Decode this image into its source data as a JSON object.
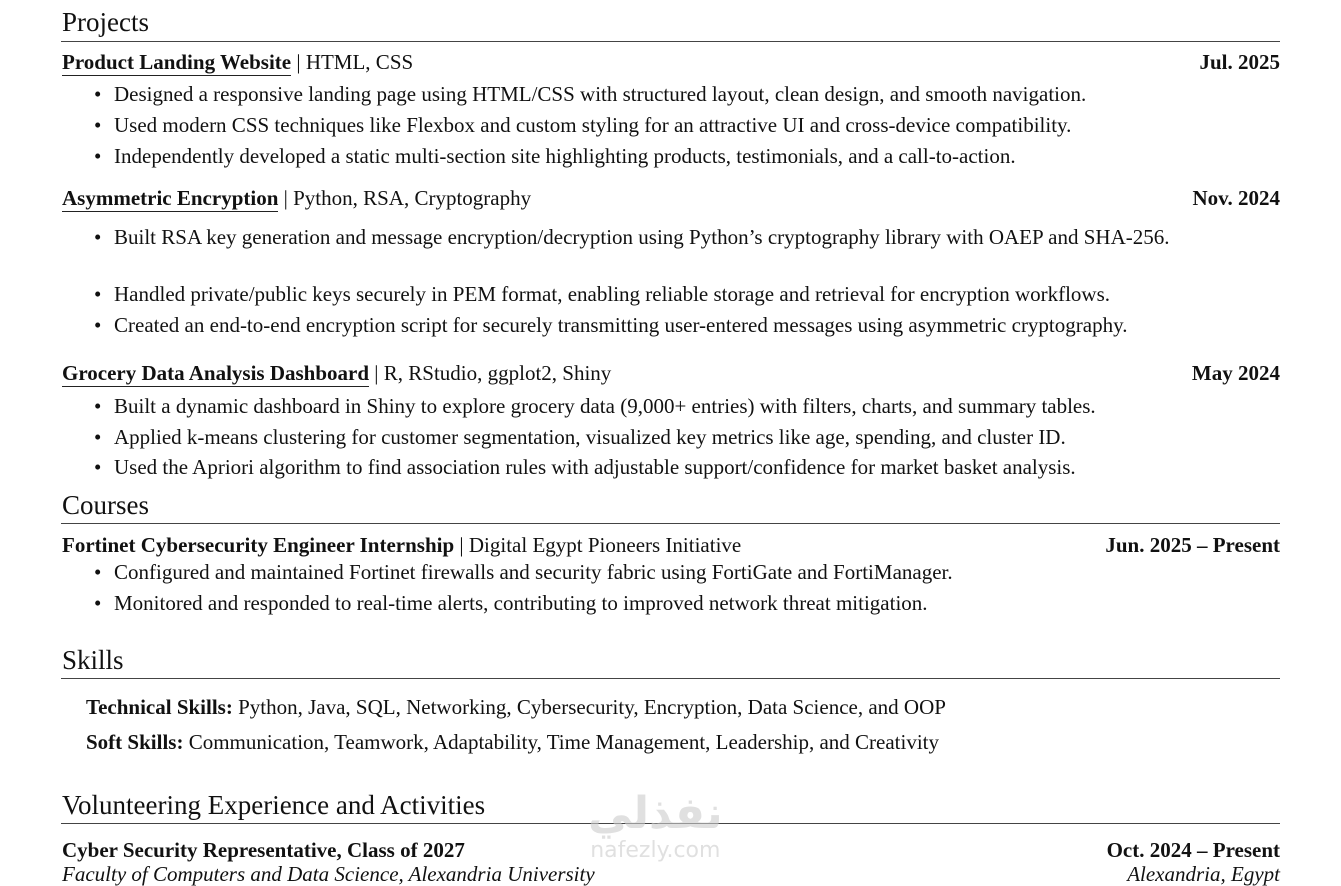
{
  "projects": {
    "heading": "Projects",
    "items": [
      {
        "title": "Product Landing Website",
        "tech": " | HTML, CSS",
        "date": "Jul. 2025",
        "bullets": [
          "Designed a responsive landing page using HTML/CSS with structured layout, clean design, and smooth navigation.",
          "Used modern CSS techniques like Flexbox and custom styling for an attractive UI and cross-device compatibility.",
          "Independently developed a static multi-section site highlighting products, testimonials, and a call-to-action."
        ]
      },
      {
        "title": "Asymmetric Encryption",
        "tech": " | Python, RSA, Cryptography",
        "date": "Nov. 2024",
        "bullets": [
          "Built RSA key generation and message encryption/decryption using Python’s cryptography library with OAEP and SHA-256.",
          "Handled private/public keys securely in PEM format, enabling reliable storage and retrieval for encryption workflows.",
          "Created an end-to-end encryption script for securely transmitting user-entered messages using asymmetric cryptography."
        ]
      },
      {
        "title": "Grocery Data Analysis Dashboard",
        "tech": " | R, RStudio, ggplot2, Shiny",
        "date": "May 2024",
        "bullets": [
          "Built a dynamic dashboard in Shiny to explore grocery data (9,000+ entries) with filters, charts, and summary tables.",
          "Applied k-means clustering for customer segmentation, visualized key metrics like age, spending, and cluster ID.",
          "Used the Apriori algorithm to find association rules with adjustable support/confidence for market basket analysis."
        ]
      }
    ]
  },
  "courses": {
    "heading": "Courses",
    "title": "Fortinet Cybersecurity Engineer Internship",
    "org": " | Digital Egypt Pioneers Initiative",
    "date": "Jun. 2025 – Present",
    "bullets": [
      "Configured and maintained Fortinet firewalls and security fabric using FortiGate and FortiManager.",
      "Monitored and responded to real-time alerts, contributing to improved network threat mitigation."
    ]
  },
  "skills": {
    "heading": "Skills",
    "technical_label": "Technical Skills:",
    "technical": " Python, Java, SQL, Networking, Cybersecurity, Encryption, Data Science, and OOP",
    "soft_label": "Soft Skills:",
    "soft": " Communication, Teamwork, Adaptability, Time Management, Leadership, and Creativity"
  },
  "volunteering": {
    "heading": "Volunteering Experience and Activities",
    "title": "Cyber Security Representative, Class of 2027",
    "date": "Oct. 2024 – Present",
    "org": "Faculty of Computers and Data Science, Alexandria University",
    "location": "Alexandria, Egypt"
  },
  "watermark": {
    "arabic": "نفذلي",
    "latin": "nafezly.com"
  }
}
